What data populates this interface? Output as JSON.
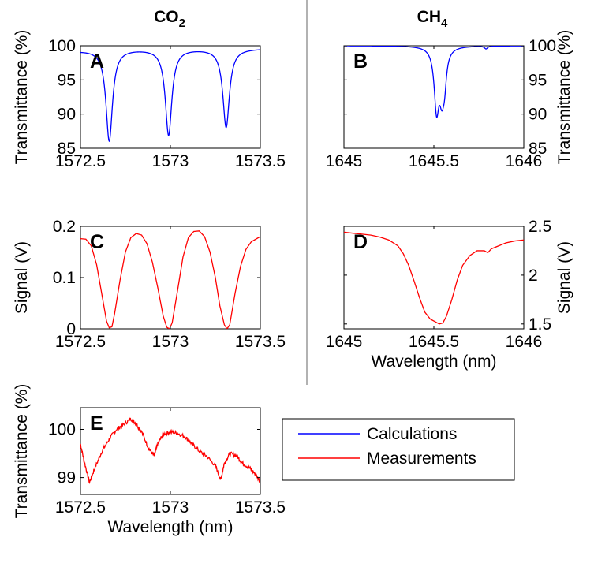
{
  "figure": {
    "col_titles": {
      "co2": {
        "main": "CO",
        "sub": "2"
      },
      "ch4": {
        "main": "CH",
        "sub": "4"
      }
    },
    "legend": [
      {
        "label": "Calculations",
        "color": "#0000ff"
      },
      {
        "label": "Measurements",
        "color": "#ff0000"
      }
    ]
  },
  "chart_data": [
    {
      "panel": "A",
      "type": "line",
      "ylabel": "Transmittance (%)",
      "xlabel": "",
      "xlim": [
        1572.5,
        1573.5
      ],
      "ylim": [
        85,
        100
      ],
      "xticks": [
        1572.5,
        1573,
        1573.5
      ],
      "xtick_labels": [
        "1572.5",
        "1573",
        "1573.5"
      ],
      "yticks": [
        85,
        90,
        95,
        100
      ],
      "ytick_labels": [
        "85",
        "90",
        "95",
        "100"
      ],
      "yaxis_side": "left",
      "series": [
        {
          "color": "#0000ff",
          "kind": "lorentz",
          "baseline": 99.6,
          "start_y": 99.3,
          "start_w": 0.15,
          "lines": [
            {
              "c": 1572.66,
              "d": 13.4,
              "w": 0.022
            },
            {
              "c": 1572.99,
              "d": 12.6,
              "w": 0.022
            },
            {
              "c": 1573.31,
              "d": 11.5,
              "w": 0.022
            }
          ]
        }
      ]
    },
    {
      "panel": "B",
      "type": "line",
      "ylabel": "Transmittance (%)",
      "xlabel": "",
      "xlim": [
        1645,
        1646
      ],
      "ylim": [
        85,
        100
      ],
      "xticks": [
        1645,
        1645.5,
        1646
      ],
      "xtick_labels": [
        "1645",
        "1645.5",
        "1646"
      ],
      "yticks": [
        85,
        90,
        95,
        100
      ],
      "ytick_labels": [
        "85",
        "90",
        "95",
        "100"
      ],
      "yaxis_side": "right",
      "series": [
        {
          "color": "#0000ff",
          "kind": "lorentz",
          "baseline": 100,
          "start_y": 100,
          "start_w": 0.1,
          "lines": [
            {
              "c": 1645.515,
              "d": 8.5,
              "w": 0.016
            },
            {
              "c": 1645.545,
              "d": 6.5,
              "w": 0.018
            },
            {
              "c": 1645.56,
              "d": 3.0,
              "w": 0.012
            },
            {
              "c": 1645.79,
              "d": 0.4,
              "w": 0.01
            }
          ]
        }
      ]
    },
    {
      "panel": "C",
      "type": "line",
      "ylabel": "Signal (V)",
      "xlabel": "",
      "xlim": [
        1572.5,
        1573.5
      ],
      "ylim": [
        0,
        0.2
      ],
      "xticks": [
        1572.5,
        1573,
        1573.5
      ],
      "xtick_labels": [
        "1572.5",
        "1573",
        "1573.5"
      ],
      "yticks": [
        0,
        0.1,
        0.2
      ],
      "ytick_labels": [
        "0",
        "0.1",
        "0.2"
      ],
      "yaxis_side": "left",
      "series": [
        {
          "color": "#ff0000",
          "kind": "points",
          "points": [
            [
              1572.5,
              0.176
            ],
            [
              1572.53,
              0.175
            ],
            [
              1572.56,
              0.162
            ],
            [
              1572.59,
              0.125
            ],
            [
              1572.62,
              0.065
            ],
            [
              1572.645,
              0.015
            ],
            [
              1572.66,
              0.002
            ],
            [
              1572.675,
              0.004
            ],
            [
              1572.69,
              0.03
            ],
            [
              1572.72,
              0.095
            ],
            [
              1572.75,
              0.15
            ],
            [
              1572.78,
              0.178
            ],
            [
              1572.81,
              0.186
            ],
            [
              1572.84,
              0.183
            ],
            [
              1572.87,
              0.166
            ],
            [
              1572.9,
              0.13
            ],
            [
              1572.93,
              0.08
            ],
            [
              1572.96,
              0.025
            ],
            [
              1572.98,
              0.003
            ],
            [
              1572.995,
              0.0
            ],
            [
              1573.01,
              0.012
            ],
            [
              1573.04,
              0.075
            ],
            [
              1573.07,
              0.14
            ],
            [
              1573.1,
              0.178
            ],
            [
              1573.13,
              0.19
            ],
            [
              1573.16,
              0.191
            ],
            [
              1573.19,
              0.18
            ],
            [
              1573.22,
              0.15
            ],
            [
              1573.25,
              0.1
            ],
            [
              1573.275,
              0.045
            ],
            [
              1573.3,
              0.008
            ],
            [
              1573.315,
              0.0
            ],
            [
              1573.33,
              0.008
            ],
            [
              1573.36,
              0.07
            ],
            [
              1573.39,
              0.122
            ],
            [
              1573.42,
              0.155
            ],
            [
              1573.45,
              0.17
            ],
            [
              1573.5,
              0.18
            ]
          ]
        }
      ]
    },
    {
      "panel": "D",
      "type": "line",
      "ylabel": "Signal (V)",
      "xlabel": "Wavelength (nm)",
      "xlim": [
        1645,
        1646
      ],
      "ylim": [
        1.45,
        2.5
      ],
      "xticks": [
        1645,
        1645.5,
        1646
      ],
      "xtick_labels": [
        "1645",
        "1645.5",
        "1646"
      ],
      "yticks": [
        1.5,
        2,
        2.5
      ],
      "ytick_labels": [
        "1.5",
        "2",
        "2.5"
      ],
      "yaxis_side": "right",
      "series": [
        {
          "color": "#ff0000",
          "kind": "points",
          "points": [
            [
              1645,
              2.44
            ],
            [
              1645.05,
              2.43
            ],
            [
              1645.1,
              2.42
            ],
            [
              1645.15,
              2.41
            ],
            [
              1645.2,
              2.39
            ],
            [
              1645.25,
              2.36
            ],
            [
              1645.3,
              2.3
            ],
            [
              1645.33,
              2.22
            ],
            [
              1645.36,
              2.1
            ],
            [
              1645.39,
              1.94
            ],
            [
              1645.42,
              1.77
            ],
            [
              1645.45,
              1.62
            ],
            [
              1645.48,
              1.55
            ],
            [
              1645.51,
              1.52
            ],
            [
              1645.53,
              1.5
            ],
            [
              1645.55,
              1.51
            ],
            [
              1645.57,
              1.58
            ],
            [
              1645.6,
              1.75
            ],
            [
              1645.63,
              1.95
            ],
            [
              1645.66,
              2.1
            ],
            [
              1645.7,
              2.2
            ],
            [
              1645.74,
              2.25
            ],
            [
              1645.78,
              2.25
            ],
            [
              1645.8,
              2.23
            ],
            [
              1645.82,
              2.27
            ],
            [
              1645.86,
              2.3
            ],
            [
              1645.9,
              2.33
            ],
            [
              1645.95,
              2.35
            ],
            [
              1646,
              2.36
            ]
          ]
        }
      ]
    },
    {
      "panel": "E",
      "type": "line",
      "ylabel": "Transmittance (%)",
      "xlabel": "Wavelength (nm)",
      "xlim": [
        1572.5,
        1573.5
      ],
      "ylim": [
        98.65,
        100.45
      ],
      "xticks": [
        1572.5,
        1573,
        1573.5
      ],
      "xtick_labels": [
        "1572.5",
        "1573",
        "1573.5"
      ],
      "yticks": [
        99,
        100
      ],
      "ytick_labels": [
        "99",
        "100"
      ],
      "yaxis_side": "left",
      "series": [
        {
          "color": "#ff0000",
          "kind": "noisy",
          "noise": 0.04,
          "points": [
            [
              1572.5,
              99.7
            ],
            [
              1572.52,
              99.35
            ],
            [
              1572.55,
              98.9
            ],
            [
              1572.58,
              99.2
            ],
            [
              1572.62,
              99.55
            ],
            [
              1572.66,
              99.8
            ],
            [
              1572.7,
              100.0
            ],
            [
              1572.74,
              100.1
            ],
            [
              1572.78,
              100.22
            ],
            [
              1572.81,
              100.12
            ],
            [
              1572.84,
              99.95
            ],
            [
              1572.88,
              99.6
            ],
            [
              1572.91,
              99.45
            ],
            [
              1572.93,
              99.7
            ],
            [
              1572.96,
              99.9
            ],
            [
              1573.0,
              99.95
            ],
            [
              1573.04,
              99.92
            ],
            [
              1573.08,
              99.85
            ],
            [
              1573.12,
              99.7
            ],
            [
              1573.16,
              99.55
            ],
            [
              1573.2,
              99.45
            ],
            [
              1573.25,
              99.25
            ],
            [
              1573.28,
              98.95
            ],
            [
              1573.3,
              99.3
            ],
            [
              1573.33,
              99.5
            ],
            [
              1573.37,
              99.45
            ],
            [
              1573.4,
              99.3
            ],
            [
              1573.44,
              99.2
            ],
            [
              1573.47,
              99.08
            ],
            [
              1573.5,
              98.92
            ]
          ]
        }
      ]
    }
  ]
}
